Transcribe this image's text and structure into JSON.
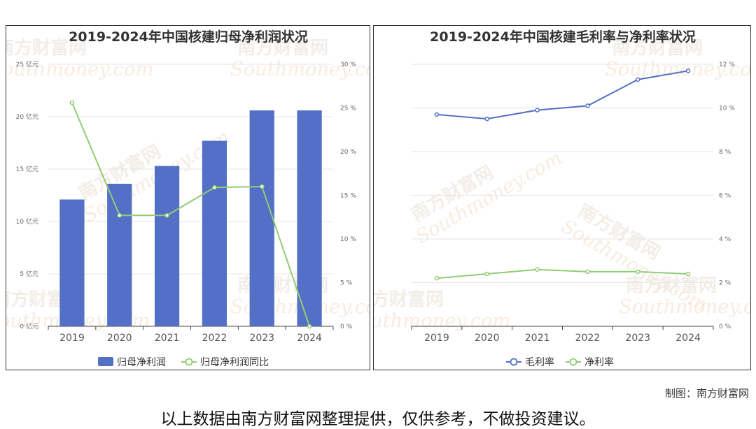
{
  "credit": "制图：南方财富网",
  "disclaimer": "以上数据由南方财富网整理提供，仅供参考，不做投资建议。",
  "watermark": {
    "cn": "南方财富网",
    "en": "Southmoney.com"
  },
  "colors": {
    "bar": "#5470c6",
    "green": "#91cc75",
    "grid": "#e6e6e6",
    "axis": "#444444"
  },
  "chart_data": [
    {
      "type": "bar",
      "title": "2019-2024年中国核建归母净利润状况",
      "categories": [
        "2019",
        "2020",
        "2021",
        "2022",
        "2023",
        "2024"
      ],
      "series": [
        {
          "name": "归母净利润",
          "type": "bar",
          "axis": "left",
          "values": [
            12.1,
            13.6,
            15.3,
            17.7,
            20.6,
            20.6
          ]
        },
        {
          "name": "归母净利润同比",
          "type": "line",
          "axis": "right",
          "values": [
            25.6,
            12.7,
            12.7,
            15.9,
            16.0,
            0.0
          ]
        }
      ],
      "y_left": {
        "min": 0,
        "max": 25,
        "step": 5,
        "unit": "亿元"
      },
      "y_right": {
        "min": 0,
        "max": 30,
        "step": 5,
        "unit": "%"
      },
      "legend": "bottom-center",
      "grid": true
    },
    {
      "type": "line",
      "title": "2019-2024年中国核建毛利率与净利率状况",
      "categories": [
        "2019",
        "2020",
        "2021",
        "2022",
        "2023",
        "2024"
      ],
      "series": [
        {
          "name": "毛利率",
          "color": "#5470c6",
          "values": [
            9.7,
            9.5,
            9.9,
            10.1,
            11.3,
            11.7
          ]
        },
        {
          "name": "净利率",
          "color": "#91cc75",
          "values": [
            2.2,
            2.4,
            2.6,
            2.5,
            2.5,
            2.4
          ]
        }
      ],
      "y_right": {
        "min": 0,
        "max": 12,
        "step": 2,
        "unit": "%"
      },
      "legend": "bottom-center",
      "grid": true
    }
  ]
}
